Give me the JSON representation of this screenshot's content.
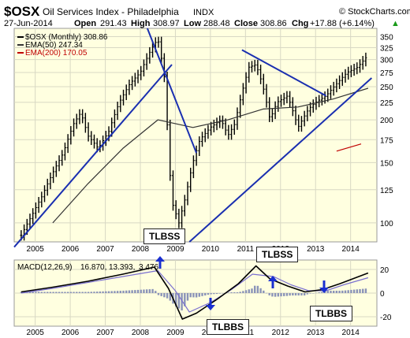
{
  "header": {
    "symbol": "$OSX",
    "name": "Oil Services Index - Philadelphia",
    "exchange": "INDX",
    "source": "© StockCharts.com",
    "date": "27-Jun-2014",
    "open_label": "Open",
    "open": "291.43",
    "high_label": "High",
    "high": "308.97",
    "low_label": "Low",
    "low": "288.48",
    "close_label": "Close",
    "close": "308.86",
    "chg_label": "Chg",
    "chg": "+17.88 (+6.14%)",
    "chg_arrow": "▲"
  },
  "legend": {
    "price": "$OSX (Monthly) 308.86",
    "ema50": "EMA(50) 247.34",
    "ema200": "EMA(200) 170.05"
  },
  "macd_legend": {
    "label": "MACD(12,26,9)",
    "v1": "16.870,",
    "v2": "13.393,",
    "v3": "3.476"
  },
  "callouts": [
    {
      "id": "tlbss-2008",
      "text": "TLBSS"
    },
    {
      "id": "tlbss-2011",
      "text": "TLBSS"
    },
    {
      "id": "tlbbs-2009",
      "text": "TLBBS"
    },
    {
      "id": "tlbbs-2013",
      "text": "TLBBS"
    }
  ],
  "colors": {
    "panel_bg": "#ffffe0",
    "grid": "#d8d8c4",
    "price": "#000000",
    "ema50": "#333333",
    "ema200": "#c00000",
    "trendline": "#1a2fb0",
    "macd": "#000000",
    "signal": "#7a6fd0",
    "histogram": "#8a93b8",
    "arrow": "#1a2fd0"
  },
  "chart_data": {
    "type": "ohlc",
    "scale": "log",
    "x_ticks": [
      "2005",
      "2006",
      "2007",
      "2008",
      "2009",
      "2010",
      "2011",
      "2012",
      "2013",
      "2014"
    ],
    "y_ticks": [
      100,
      125,
      150,
      175,
      200,
      225,
      250,
      275,
      300,
      325,
      350
    ],
    "ylim": [
      88,
      370
    ],
    "ema50_legend_value": 247.34,
    "ema200_legend_value": 170.05,
    "last": {
      "open": 291.43,
      "high": 308.97,
      "low": 288.48,
      "close": 308.86
    },
    "price_path": [
      [
        "2004.6",
        92
      ],
      [
        "2004.9",
        105
      ],
      [
        "2005.2",
        120
      ],
      [
        "2005.5",
        140
      ],
      [
        "2005.8",
        160
      ],
      [
        "2006.1",
        195
      ],
      [
        "2006.3",
        210
      ],
      [
        "2006.5",
        180
      ],
      [
        "2006.8",
        165
      ],
      [
        "2007.1",
        185
      ],
      [
        "2007.4",
        225
      ],
      [
        "2007.7",
        255
      ],
      [
        "2008.0",
        275
      ],
      [
        "2008.3",
        320
      ],
      [
        "2008.5",
        345
      ],
      [
        "2008.7",
        260
      ],
      [
        "2008.8",
        160
      ],
      [
        "2008.9",
        115
      ],
      [
        "2009.1",
        100
      ],
      [
        "2009.3",
        120
      ],
      [
        "2009.5",
        150
      ],
      [
        "2009.7",
        175
      ],
      [
        "2010.0",
        190
      ],
      [
        "2010.3",
        200
      ],
      [
        "2010.5",
        180
      ],
      [
        "2010.7",
        195
      ],
      [
        "2010.9",
        240
      ],
      [
        "2011.1",
        285
      ],
      [
        "2011.3",
        290
      ],
      [
        "2011.5",
        250
      ],
      [
        "2011.7",
        200
      ],
      [
        "2011.9",
        225
      ],
      [
        "2012.2",
        235
      ],
      [
        "2012.5",
        190
      ],
      [
        "2012.8",
        215
      ],
      [
        "2013.0",
        225
      ],
      [
        "2013.3",
        235
      ],
      [
        "2013.6",
        255
      ],
      [
        "2013.9",
        275
      ],
      [
        "2014.2",
        285
      ],
      [
        "2014.5",
        308.86
      ]
    ],
    "ema50_path": [
      [
        "2005.5",
        100
      ],
      [
        "2006.5",
        130
      ],
      [
        "2007.5",
        165
      ],
      [
        "2008.5",
        200
      ],
      [
        "2009.5",
        190
      ],
      [
        "2010.5",
        200
      ],
      [
        "2011.5",
        215
      ],
      [
        "2012.5",
        218
      ],
      [
        "2013.5",
        230
      ],
      [
        "2014.5",
        247.34
      ]
    ],
    "ema200_path": [
      [
        "2013.6",
        162
      ],
      [
        "2014.3",
        170.05
      ]
    ],
    "trendlines": [
      {
        "from": [
          "2004.4",
          85
        ],
        "to": [
          "2008.9",
          290
        ]
      },
      {
        "from": [
          "2008.2",
          370
        ],
        "to": [
          "2009.6",
          160
        ]
      },
      {
        "from": [
          "2009.4",
          88
        ],
        "to": [
          "2014.6",
          265
        ]
      },
      {
        "from": [
          "2010.9",
          320
        ],
        "to": [
          "2013.3",
          235
        ]
      }
    ],
    "macd": {
      "title": "MACD(12,26,9)",
      "last": [
        16.87,
        13.393,
        3.476
      ],
      "y_ticks": [
        20,
        0,
        -20
      ],
      "ylim": [
        -28,
        28
      ],
      "macd_path": [
        [
          "2004.6",
          1
        ],
        [
          "2005.5",
          5
        ],
        [
          "2006.5",
          10
        ],
        [
          "2007.5",
          16
        ],
        [
          "2008.4",
          22
        ],
        [
          "2008.8",
          4
        ],
        [
          "2009.2",
          -22
        ],
        [
          "2009.6",
          -17
        ],
        [
          "2010.2",
          -5
        ],
        [
          "2010.8",
          8
        ],
        [
          "2011.3",
          23
        ],
        [
          "2011.7",
          12
        ],
        [
          "2012.2",
          6
        ],
        [
          "2012.7",
          1
        ],
        [
          "2013.2",
          3
        ],
        [
          "2013.7",
          8
        ],
        [
          "2014.5",
          17
        ]
      ],
      "signal_path": [
        [
          "2004.6",
          0
        ],
        [
          "2005.5",
          4
        ],
        [
          "2006.5",
          9
        ],
        [
          "2007.5",
          14
        ],
        [
          "2008.5",
          19
        ],
        [
          "2009.0",
          2
        ],
        [
          "2009.4",
          -16
        ],
        [
          "2010.0",
          -8
        ],
        [
          "2010.6",
          3
        ],
        [
          "2011.2",
          16
        ],
        [
          "2011.8",
          14
        ],
        [
          "2012.3",
          7
        ],
        [
          "2012.8",
          2
        ],
        [
          "2013.3",
          2
        ],
        [
          "2013.8",
          7
        ],
        [
          "2014.5",
          13
        ]
      ]
    }
  }
}
